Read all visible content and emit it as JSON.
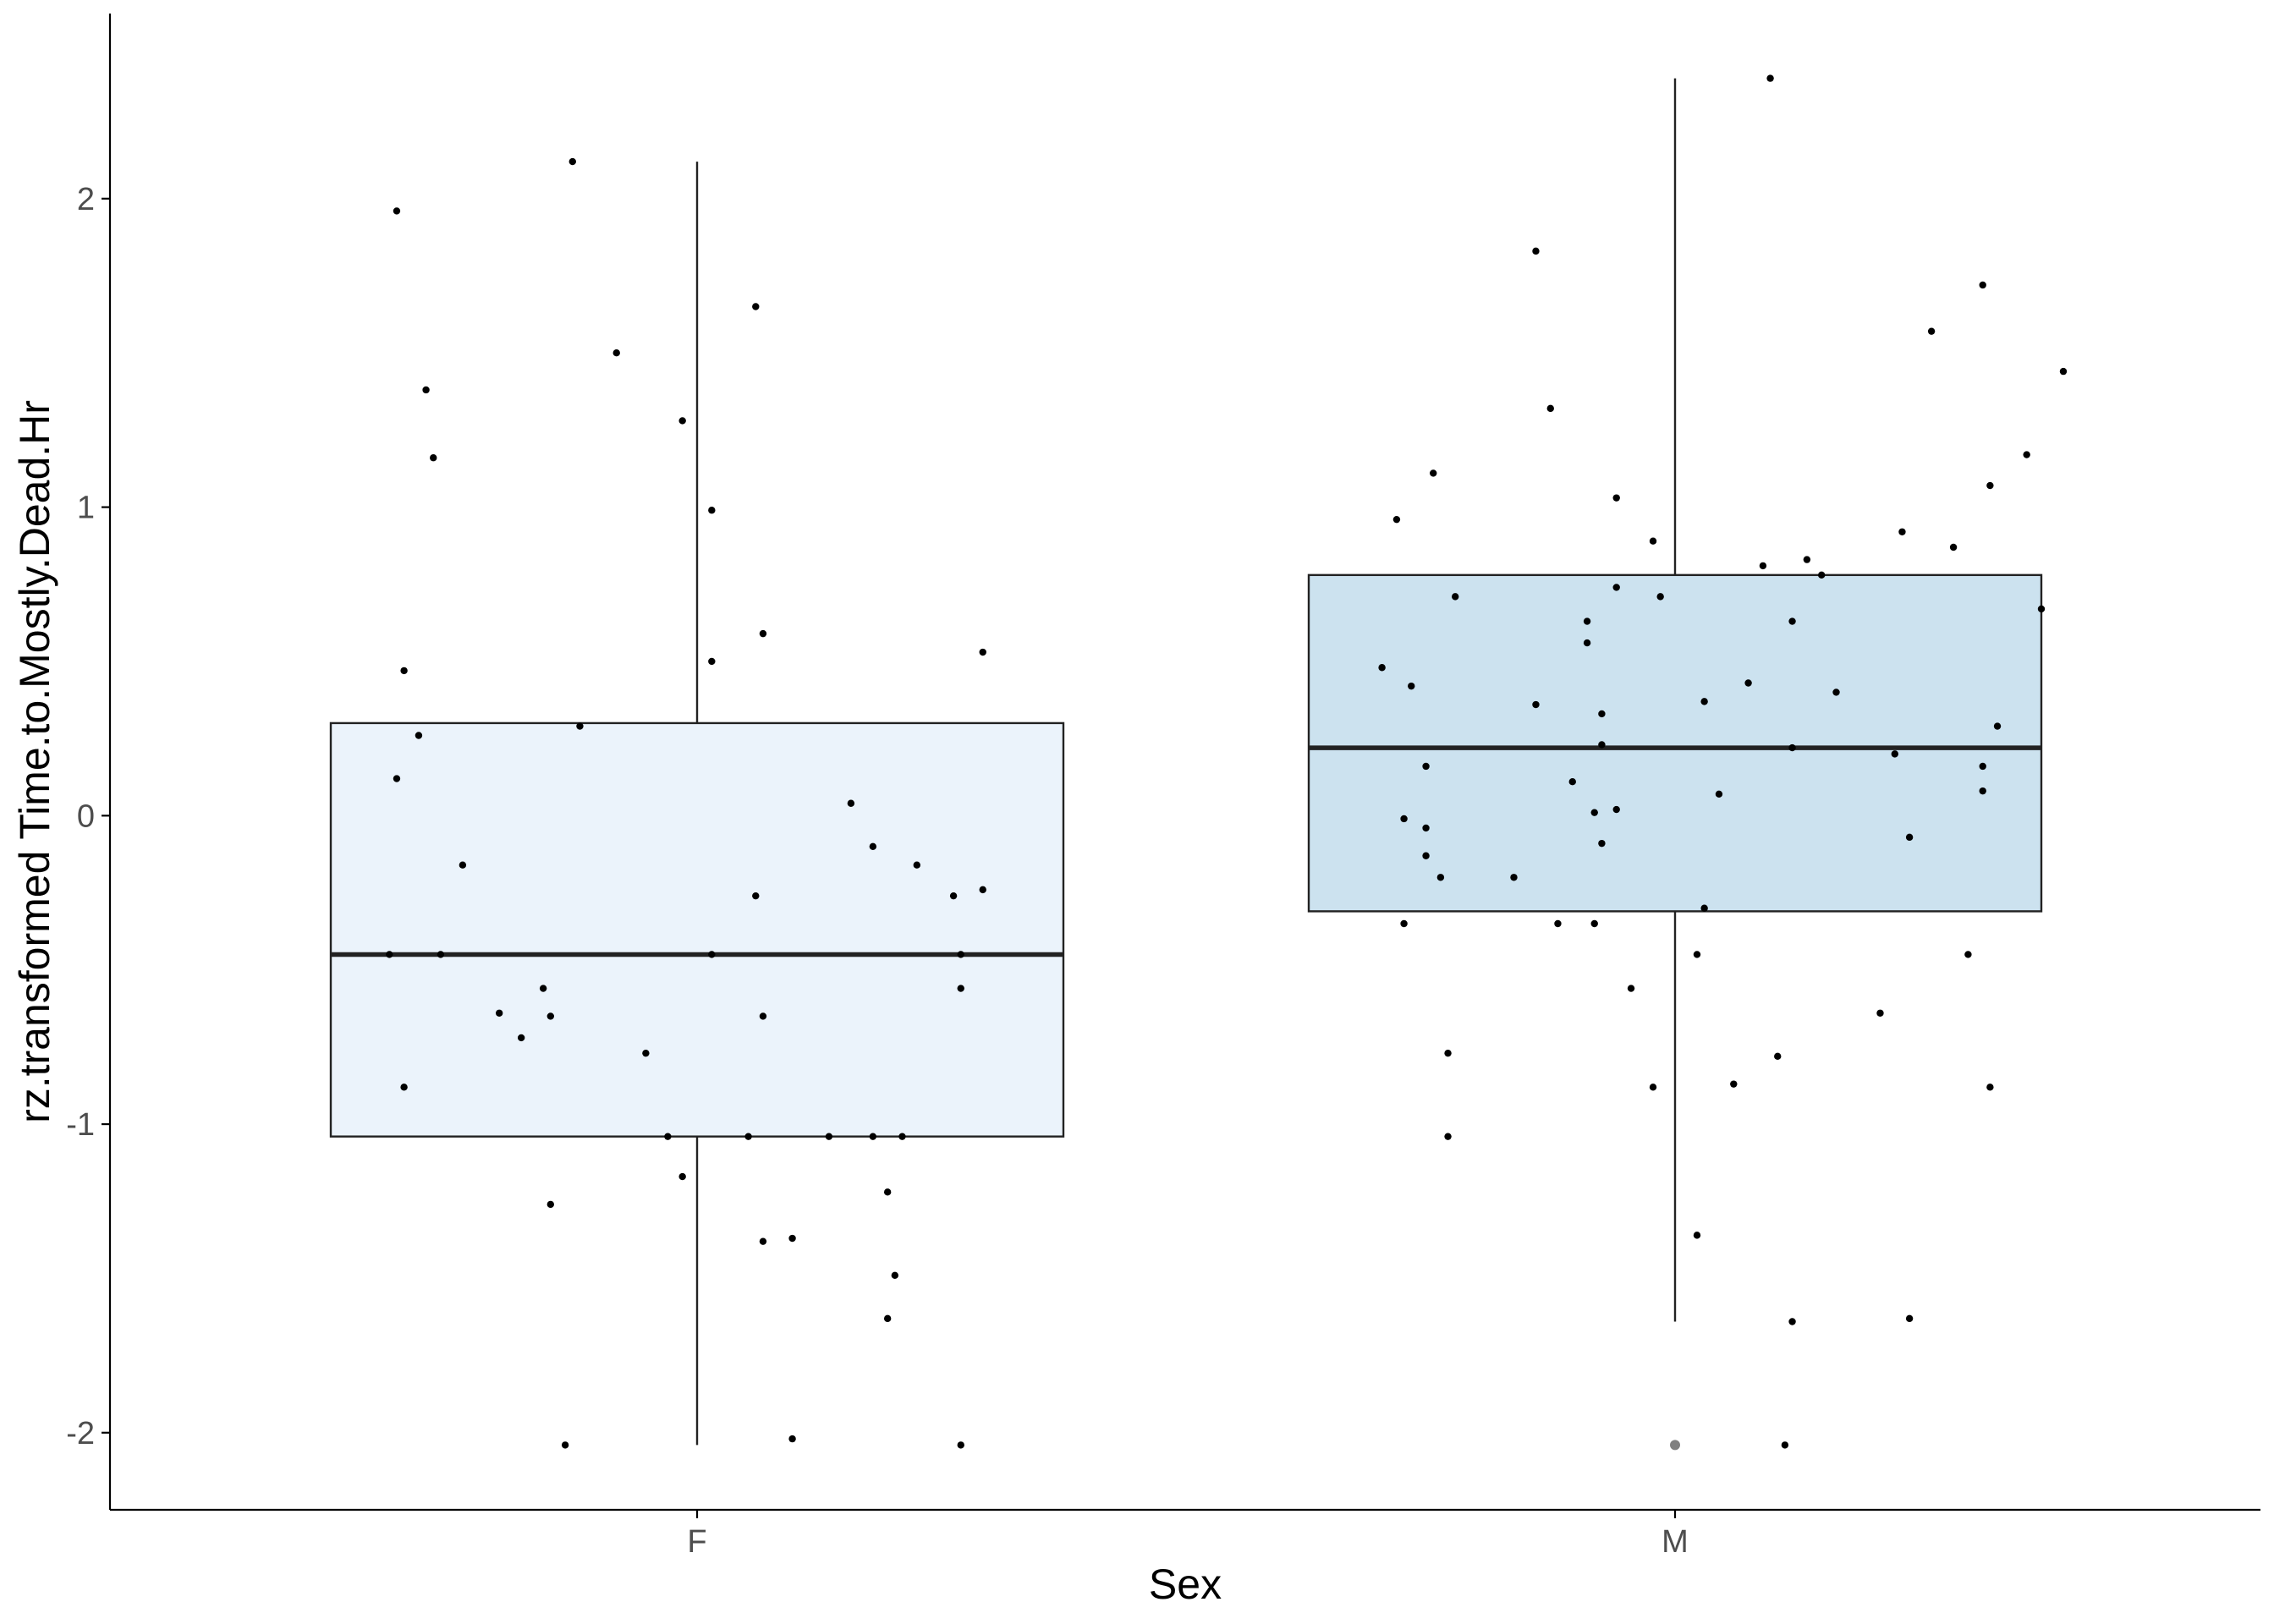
{
  "chart_data": {
    "type": "box",
    "xlabel": "Sex",
    "ylabel": "rz.transformed Time.to.Mostly.Dead.Hr",
    "categories": [
      "F",
      "M"
    ],
    "ylim": [
      -2.25,
      2.6
    ],
    "yticks": [
      -2,
      -1,
      0,
      1,
      2
    ],
    "yticklabels": [
      "-2",
      "-1",
      "0",
      "1",
      "2"
    ],
    "grid": false,
    "legend": "none",
    "colors": {
      "F": "#ebf3fb",
      "M": "#cce2ef",
      "outline": "#222222",
      "point": "#000000",
      "outlier": "#808080"
    },
    "boxes": [
      {
        "category": "F",
        "min": -2.04,
        "q1": -1.04,
        "median": -0.45,
        "q3": 0.3,
        "max": 2.12,
        "outliers": []
      },
      {
        "category": "M",
        "min": -1.64,
        "q1": -0.31,
        "median": 0.22,
        "q3": 0.78,
        "max": 2.39,
        "outliers": [
          -2.04
        ]
      }
    ],
    "points": {
      "F": [
        [
          -0.41,
          1.96
        ],
        [
          -0.37,
          1.38
        ],
        [
          -0.36,
          1.16
        ],
        [
          -0.4,
          0.47
        ],
        [
          -0.38,
          0.26
        ],
        [
          -0.41,
          0.12
        ],
        [
          -0.42,
          -0.45
        ],
        [
          -0.4,
          -0.88
        ],
        [
          -0.32,
          -0.16
        ],
        [
          -0.35,
          -0.45
        ],
        [
          -0.27,
          -0.64
        ],
        [
          -0.24,
          -0.72
        ],
        [
          -0.21,
          -0.56
        ],
        [
          -0.2,
          -0.65
        ],
        [
          -0.2,
          -1.26
        ],
        [
          -0.17,
          2.12
        ],
        [
          -0.18,
          -2.04
        ],
        [
          -0.16,
          0.29
        ],
        [
          -0.11,
          1.5
        ],
        [
          -0.07,
          -0.77
        ],
        [
          -0.04,
          -1.04
        ],
        [
          -0.02,
          -1.17
        ],
        [
          -0.02,
          1.28
        ],
        [
          0.02,
          0.99
        ],
        [
          0.02,
          0.5
        ],
        [
          0.02,
          -0.45
        ],
        [
          0.07,
          -1.04
        ],
        [
          0.08,
          -0.26
        ],
        [
          0.08,
          1.65
        ],
        [
          0.09,
          -0.65
        ],
        [
          0.09,
          0.59
        ],
        [
          0.09,
          -1.38
        ],
        [
          0.13,
          -1.37
        ],
        [
          0.13,
          -2.02
        ],
        [
          0.18,
          -1.04
        ],
        [
          0.21,
          0.04
        ],
        [
          0.24,
          -0.1
        ],
        [
          0.24,
          -1.04
        ],
        [
          0.26,
          -1.63
        ],
        [
          0.26,
          -1.22
        ],
        [
          0.27,
          -1.49
        ],
        [
          0.28,
          -1.04
        ],
        [
          0.3,
          -0.16
        ],
        [
          0.35,
          -0.26
        ],
        [
          0.36,
          -0.45
        ],
        [
          0.36,
          -0.56
        ],
        [
          0.36,
          -2.04
        ],
        [
          0.39,
          0.53
        ],
        [
          0.39,
          -0.24
        ]
      ],
      "M": [
        [
          -0.4,
          0.48
        ],
        [
          -0.38,
          0.96
        ],
        [
          -0.37,
          -0.01
        ],
        [
          -0.36,
          0.42
        ],
        [
          -0.37,
          -0.35
        ],
        [
          -0.34,
          0.16
        ],
        [
          -0.34,
          -0.13
        ],
        [
          -0.34,
          -0.04
        ],
        [
          -0.33,
          1.11
        ],
        [
          -0.32,
          -0.2
        ],
        [
          -0.31,
          -0.77
        ],
        [
          -0.31,
          -1.04
        ],
        [
          -0.3,
          0.71
        ],
        [
          -0.22,
          -0.2
        ],
        [
          -0.19,
          0.36
        ],
        [
          -0.19,
          1.83
        ],
        [
          -0.17,
          1.32
        ],
        [
          -0.16,
          -0.35
        ],
        [
          -0.14,
          0.11
        ],
        [
          -0.12,
          0.56
        ],
        [
          -0.12,
          0.63
        ],
        [
          -0.11,
          -0.35
        ],
        [
          -0.11,
          0.01
        ],
        [
          -0.1,
          0.33
        ],
        [
          -0.1,
          0.23
        ],
        [
          -0.1,
          -0.09
        ],
        [
          -0.08,
          1.03
        ],
        [
          -0.08,
          0.02
        ],
        [
          -0.06,
          -0.56
        ],
        [
          -0.08,
          0.74
        ],
        [
          -0.03,
          0.89
        ],
        [
          -0.03,
          -0.88
        ],
        [
          -0.02,
          0.71
        ],
        [
          0.03,
          -1.36
        ],
        [
          0.03,
          -0.45
        ],
        [
          0.04,
          0.37
        ],
        [
          0.04,
          -0.3
        ],
        [
          0.06,
          0.07
        ],
        [
          0.08,
          -0.87
        ],
        [
          0.1,
          0.43
        ],
        [
          0.12,
          0.81
        ],
        [
          0.13,
          2.39
        ],
        [
          0.14,
          -0.78
        ],
        [
          0.15,
          -2.04
        ],
        [
          0.16,
          -1.64
        ],
        [
          0.16,
          0.63
        ],
        [
          0.16,
          0.22
        ],
        [
          0.18,
          0.83
        ],
        [
          0.2,
          0.78
        ],
        [
          0.22,
          0.4
        ],
        [
          0.28,
          -0.64
        ],
        [
          0.3,
          0.2
        ],
        [
          0.31,
          0.92
        ],
        [
          0.32,
          -0.07
        ],
        [
          0.32,
          -1.63
        ],
        [
          0.35,
          1.57
        ],
        [
          0.38,
          0.87
        ],
        [
          0.4,
          -0.45
        ],
        [
          0.42,
          1.72
        ],
        [
          0.42,
          0.16
        ],
        [
          0.42,
          0.08
        ],
        [
          0.43,
          1.07
        ],
        [
          0.43,
          -0.88
        ],
        [
          0.44,
          0.29
        ],
        [
          0.48,
          1.17
        ],
        [
          0.5,
          0.67
        ],
        [
          0.53,
          1.44
        ]
      ]
    }
  }
}
